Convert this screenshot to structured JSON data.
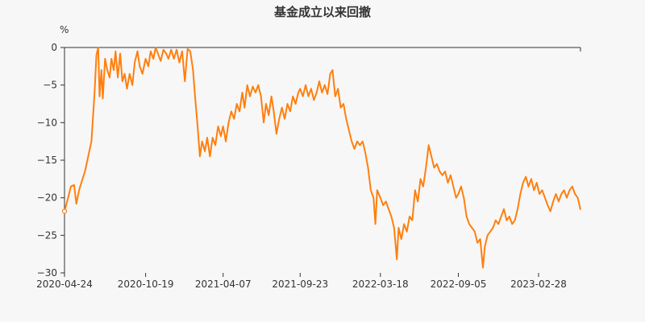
{
  "chart_data": {
    "type": "line",
    "title": "基金成立以来回撤",
    "y_unit": "%",
    "xlabel": "",
    "ylabel": "",
    "ylim": [
      -30,
      0
    ],
    "y_ticks": [
      0,
      -5,
      -10,
      -15,
      -20,
      -25,
      -30
    ],
    "y_tick_labels": [
      "0",
      "−5",
      "−10",
      "−15",
      "−20",
      "−25",
      "−30"
    ],
    "x_range": [
      "2020-04-24",
      "2023-05-31"
    ],
    "x_ticks": [
      "2020-04-24",
      "2020-10-19",
      "2021-04-07",
      "2021-09-23",
      "2022-03-18",
      "2022-09-05",
      "2023-02-28"
    ],
    "grid": false,
    "legend": "none",
    "line_color": "#ff7f0e",
    "series": [
      {
        "name": "",
        "points": [
          [
            "2020-04-24",
            -21.8
          ],
          [
            "2020-05-02",
            -20.0
          ],
          [
            "2020-05-08",
            -18.5
          ],
          [
            "2020-05-15",
            -18.3
          ],
          [
            "2020-05-20",
            -20.8
          ],
          [
            "2020-05-26",
            -19.0
          ],
          [
            "2020-06-01",
            -17.8
          ],
          [
            "2020-06-08",
            -16.5
          ],
          [
            "2020-06-15",
            -14.5
          ],
          [
            "2020-06-22",
            -12.5
          ],
          [
            "2020-06-29",
            -6.0
          ],
          [
            "2020-07-03",
            -1.0
          ],
          [
            "2020-07-07",
            0.0
          ],
          [
            "2020-07-10",
            -6.5
          ],
          [
            "2020-07-14",
            -3.0
          ],
          [
            "2020-07-17",
            -6.8
          ],
          [
            "2020-07-22",
            -1.5
          ],
          [
            "2020-07-27",
            -3.0
          ],
          [
            "2020-08-01",
            -4.0
          ],
          [
            "2020-08-05",
            -1.5
          ],
          [
            "2020-08-10",
            -3.0
          ],
          [
            "2020-08-14",
            -0.5
          ],
          [
            "2020-08-19",
            -4.0
          ],
          [
            "2020-08-24",
            -0.8
          ],
          [
            "2020-08-29",
            -4.5
          ],
          [
            "2020-09-03",
            -3.5
          ],
          [
            "2020-09-08",
            -5.5
          ],
          [
            "2020-09-14",
            -3.5
          ],
          [
            "2020-09-20",
            -5.0
          ],
          [
            "2020-09-25",
            -2.0
          ],
          [
            "2020-10-01",
            -0.5
          ],
          [
            "2020-10-06",
            -2.5
          ],
          [
            "2020-10-12",
            -3.5
          ],
          [
            "2020-10-19",
            -1.5
          ],
          [
            "2020-10-25",
            -2.5
          ],
          [
            "2020-10-30",
            -0.5
          ],
          [
            "2020-11-05",
            -1.5
          ],
          [
            "2020-11-10",
            0.0
          ],
          [
            "2020-11-16",
            -1.0
          ],
          [
            "2020-11-21",
            -1.8
          ],
          [
            "2020-11-27",
            -0.3
          ],
          [
            "2020-12-03",
            -0.8
          ],
          [
            "2020-12-08",
            -1.5
          ],
          [
            "2020-12-14",
            -0.3
          ],
          [
            "2020-12-20",
            -1.5
          ],
          [
            "2020-12-26",
            -0.3
          ],
          [
            "2021-01-01",
            -2.0
          ],
          [
            "2021-01-07",
            -0.5
          ],
          [
            "2021-01-13",
            -4.5
          ],
          [
            "2021-01-19",
            -0.2
          ],
          [
            "2021-01-25",
            -0.5
          ],
          [
            "2021-01-31",
            -3.0
          ],
          [
            "2021-02-05",
            -7.0
          ],
          [
            "2021-02-10",
            -10.5
          ],
          [
            "2021-02-15",
            -14.5
          ],
          [
            "2021-02-20",
            -12.5
          ],
          [
            "2021-02-26",
            -13.8
          ],
          [
            "2021-03-03",
            -12.0
          ],
          [
            "2021-03-09",
            -14.5
          ],
          [
            "2021-03-15",
            -12.0
          ],
          [
            "2021-03-21",
            -13.0
          ],
          [
            "2021-03-27",
            -10.5
          ],
          [
            "2021-04-02",
            -11.8
          ],
          [
            "2021-04-07",
            -10.5
          ],
          [
            "2021-04-13",
            -12.5
          ],
          [
            "2021-04-19",
            -10.0
          ],
          [
            "2021-04-25",
            -8.5
          ],
          [
            "2021-05-01",
            -9.5
          ],
          [
            "2021-05-07",
            -7.5
          ],
          [
            "2021-05-13",
            -8.5
          ],
          [
            "2021-05-19",
            -6.0
          ],
          [
            "2021-05-24",
            -8.0
          ],
          [
            "2021-05-30",
            -5.0
          ],
          [
            "2021-06-05",
            -6.5
          ],
          [
            "2021-06-11",
            -5.2
          ],
          [
            "2021-06-17",
            -6.0
          ],
          [
            "2021-06-23",
            -5.0
          ],
          [
            "2021-06-29",
            -6.5
          ],
          [
            "2021-07-05",
            -10.0
          ],
          [
            "2021-07-10",
            -7.5
          ],
          [
            "2021-07-16",
            -9.0
          ],
          [
            "2021-07-22",
            -6.5
          ],
          [
            "2021-07-27",
            -8.5
          ],
          [
            "2021-08-02",
            -11.5
          ],
          [
            "2021-08-08",
            -9.5
          ],
          [
            "2021-08-14",
            -8.0
          ],
          [
            "2021-08-20",
            -9.5
          ],
          [
            "2021-08-26",
            -7.5
          ],
          [
            "2021-09-01",
            -8.5
          ],
          [
            "2021-09-07",
            -6.5
          ],
          [
            "2021-09-13",
            -7.5
          ],
          [
            "2021-09-19",
            -6.0
          ],
          [
            "2021-09-23",
            -5.5
          ],
          [
            "2021-09-29",
            -6.5
          ],
          [
            "2021-10-05",
            -5.0
          ],
          [
            "2021-10-11",
            -6.5
          ],
          [
            "2021-10-17",
            -5.5
          ],
          [
            "2021-10-23",
            -7.0
          ],
          [
            "2021-10-29",
            -6.0
          ],
          [
            "2021-11-04",
            -4.5
          ],
          [
            "2021-11-10",
            -6.0
          ],
          [
            "2021-11-16",
            -5.0
          ],
          [
            "2021-11-22",
            -6.2
          ],
          [
            "2021-11-28",
            -3.5
          ],
          [
            "2021-12-03",
            -3.0
          ],
          [
            "2021-12-09",
            -6.5
          ],
          [
            "2021-12-15",
            -5.5
          ],
          [
            "2021-12-21",
            -8.0
          ],
          [
            "2021-12-27",
            -7.5
          ],
          [
            "2022-01-02",
            -9.5
          ],
          [
            "2022-01-08",
            -11.0
          ],
          [
            "2022-01-14",
            -12.5
          ],
          [
            "2022-01-20",
            -13.5
          ],
          [
            "2022-01-26",
            -12.5
          ],
          [
            "2022-02-01",
            -13.0
          ],
          [
            "2022-02-07",
            -12.5
          ],
          [
            "2022-02-13",
            -14.0
          ],
          [
            "2022-02-19",
            -16.0
          ],
          [
            "2022-02-25",
            -19.0
          ],
          [
            "2022-03-03",
            -20.0
          ],
          [
            "2022-03-07",
            -23.5
          ],
          [
            "2022-03-11",
            -19.0
          ],
          [
            "2022-03-18",
            -20.0
          ],
          [
            "2022-03-24",
            -21.0
          ],
          [
            "2022-03-30",
            -20.5
          ],
          [
            "2022-04-05",
            -21.5
          ],
          [
            "2022-04-11",
            -22.5
          ],
          [
            "2022-04-17",
            -24.0
          ],
          [
            "2022-04-23",
            -28.2
          ],
          [
            "2022-04-27",
            -24.0
          ],
          [
            "2022-05-03",
            -25.5
          ],
          [
            "2022-05-09",
            -23.5
          ],
          [
            "2022-05-15",
            -24.5
          ],
          [
            "2022-05-21",
            -22.5
          ],
          [
            "2022-05-27",
            -23.0
          ],
          [
            "2022-06-02",
            -19.0
          ],
          [
            "2022-06-08",
            -20.5
          ],
          [
            "2022-06-14",
            -17.5
          ],
          [
            "2022-06-20",
            -18.5
          ],
          [
            "2022-06-26",
            -16.0
          ],
          [
            "2022-07-02",
            -13.0
          ],
          [
            "2022-07-08",
            -14.5
          ],
          [
            "2022-07-14",
            -16.0
          ],
          [
            "2022-07-20",
            -15.5
          ],
          [
            "2022-07-26",
            -16.5
          ],
          [
            "2022-08-01",
            -17.0
          ],
          [
            "2022-08-07",
            -16.5
          ],
          [
            "2022-08-13",
            -18.0
          ],
          [
            "2022-08-19",
            -17.0
          ],
          [
            "2022-08-25",
            -18.5
          ],
          [
            "2022-08-31",
            -20.0
          ],
          [
            "2022-09-05",
            -19.5
          ],
          [
            "2022-09-11",
            -18.5
          ],
          [
            "2022-09-17",
            -20.0
          ],
          [
            "2022-09-23",
            -22.5
          ],
          [
            "2022-09-29",
            -23.5
          ],
          [
            "2022-10-05",
            -24.0
          ],
          [
            "2022-10-11",
            -24.5
          ],
          [
            "2022-10-17",
            -26.0
          ],
          [
            "2022-10-23",
            -25.5
          ],
          [
            "2022-10-29",
            -29.3
          ],
          [
            "2022-11-02",
            -26.5
          ],
          [
            "2022-11-08",
            -25.0
          ],
          [
            "2022-11-14",
            -24.5
          ],
          [
            "2022-11-20",
            -24.0
          ],
          [
            "2022-11-26",
            -23.0
          ],
          [
            "2022-12-02",
            -23.5
          ],
          [
            "2022-12-08",
            -22.5
          ],
          [
            "2022-12-14",
            -21.5
          ],
          [
            "2022-12-20",
            -23.0
          ],
          [
            "2022-12-26",
            -22.5
          ],
          [
            "2023-01-01",
            -23.5
          ],
          [
            "2023-01-07",
            -23.0
          ],
          [
            "2023-01-13",
            -21.5
          ],
          [
            "2023-01-19",
            -19.5
          ],
          [
            "2023-01-25",
            -18.0
          ],
          [
            "2023-01-31",
            -17.2
          ],
          [
            "2023-02-06",
            -18.5
          ],
          [
            "2023-02-12",
            -17.5
          ],
          [
            "2023-02-18",
            -19.0
          ],
          [
            "2023-02-24",
            -18.0
          ],
          [
            "2023-03-02",
            -19.5
          ],
          [
            "2023-03-08",
            -19.0
          ],
          [
            "2023-03-14",
            -20.0
          ],
          [
            "2023-03-20",
            -21.0
          ],
          [
            "2023-03-26",
            -21.8
          ],
          [
            "2023-04-01",
            -20.5
          ],
          [
            "2023-04-07",
            -19.5
          ],
          [
            "2023-04-13",
            -20.5
          ],
          [
            "2023-04-19",
            -19.5
          ],
          [
            "2023-04-25",
            -19.0
          ],
          [
            "2023-05-01",
            -20.0
          ],
          [
            "2023-05-07",
            -19.0
          ],
          [
            "2023-05-13",
            -18.5
          ],
          [
            "2023-05-19",
            -19.5
          ],
          [
            "2023-05-25",
            -20.0
          ],
          [
            "2023-05-31",
            -21.6
          ]
        ]
      }
    ]
  }
}
